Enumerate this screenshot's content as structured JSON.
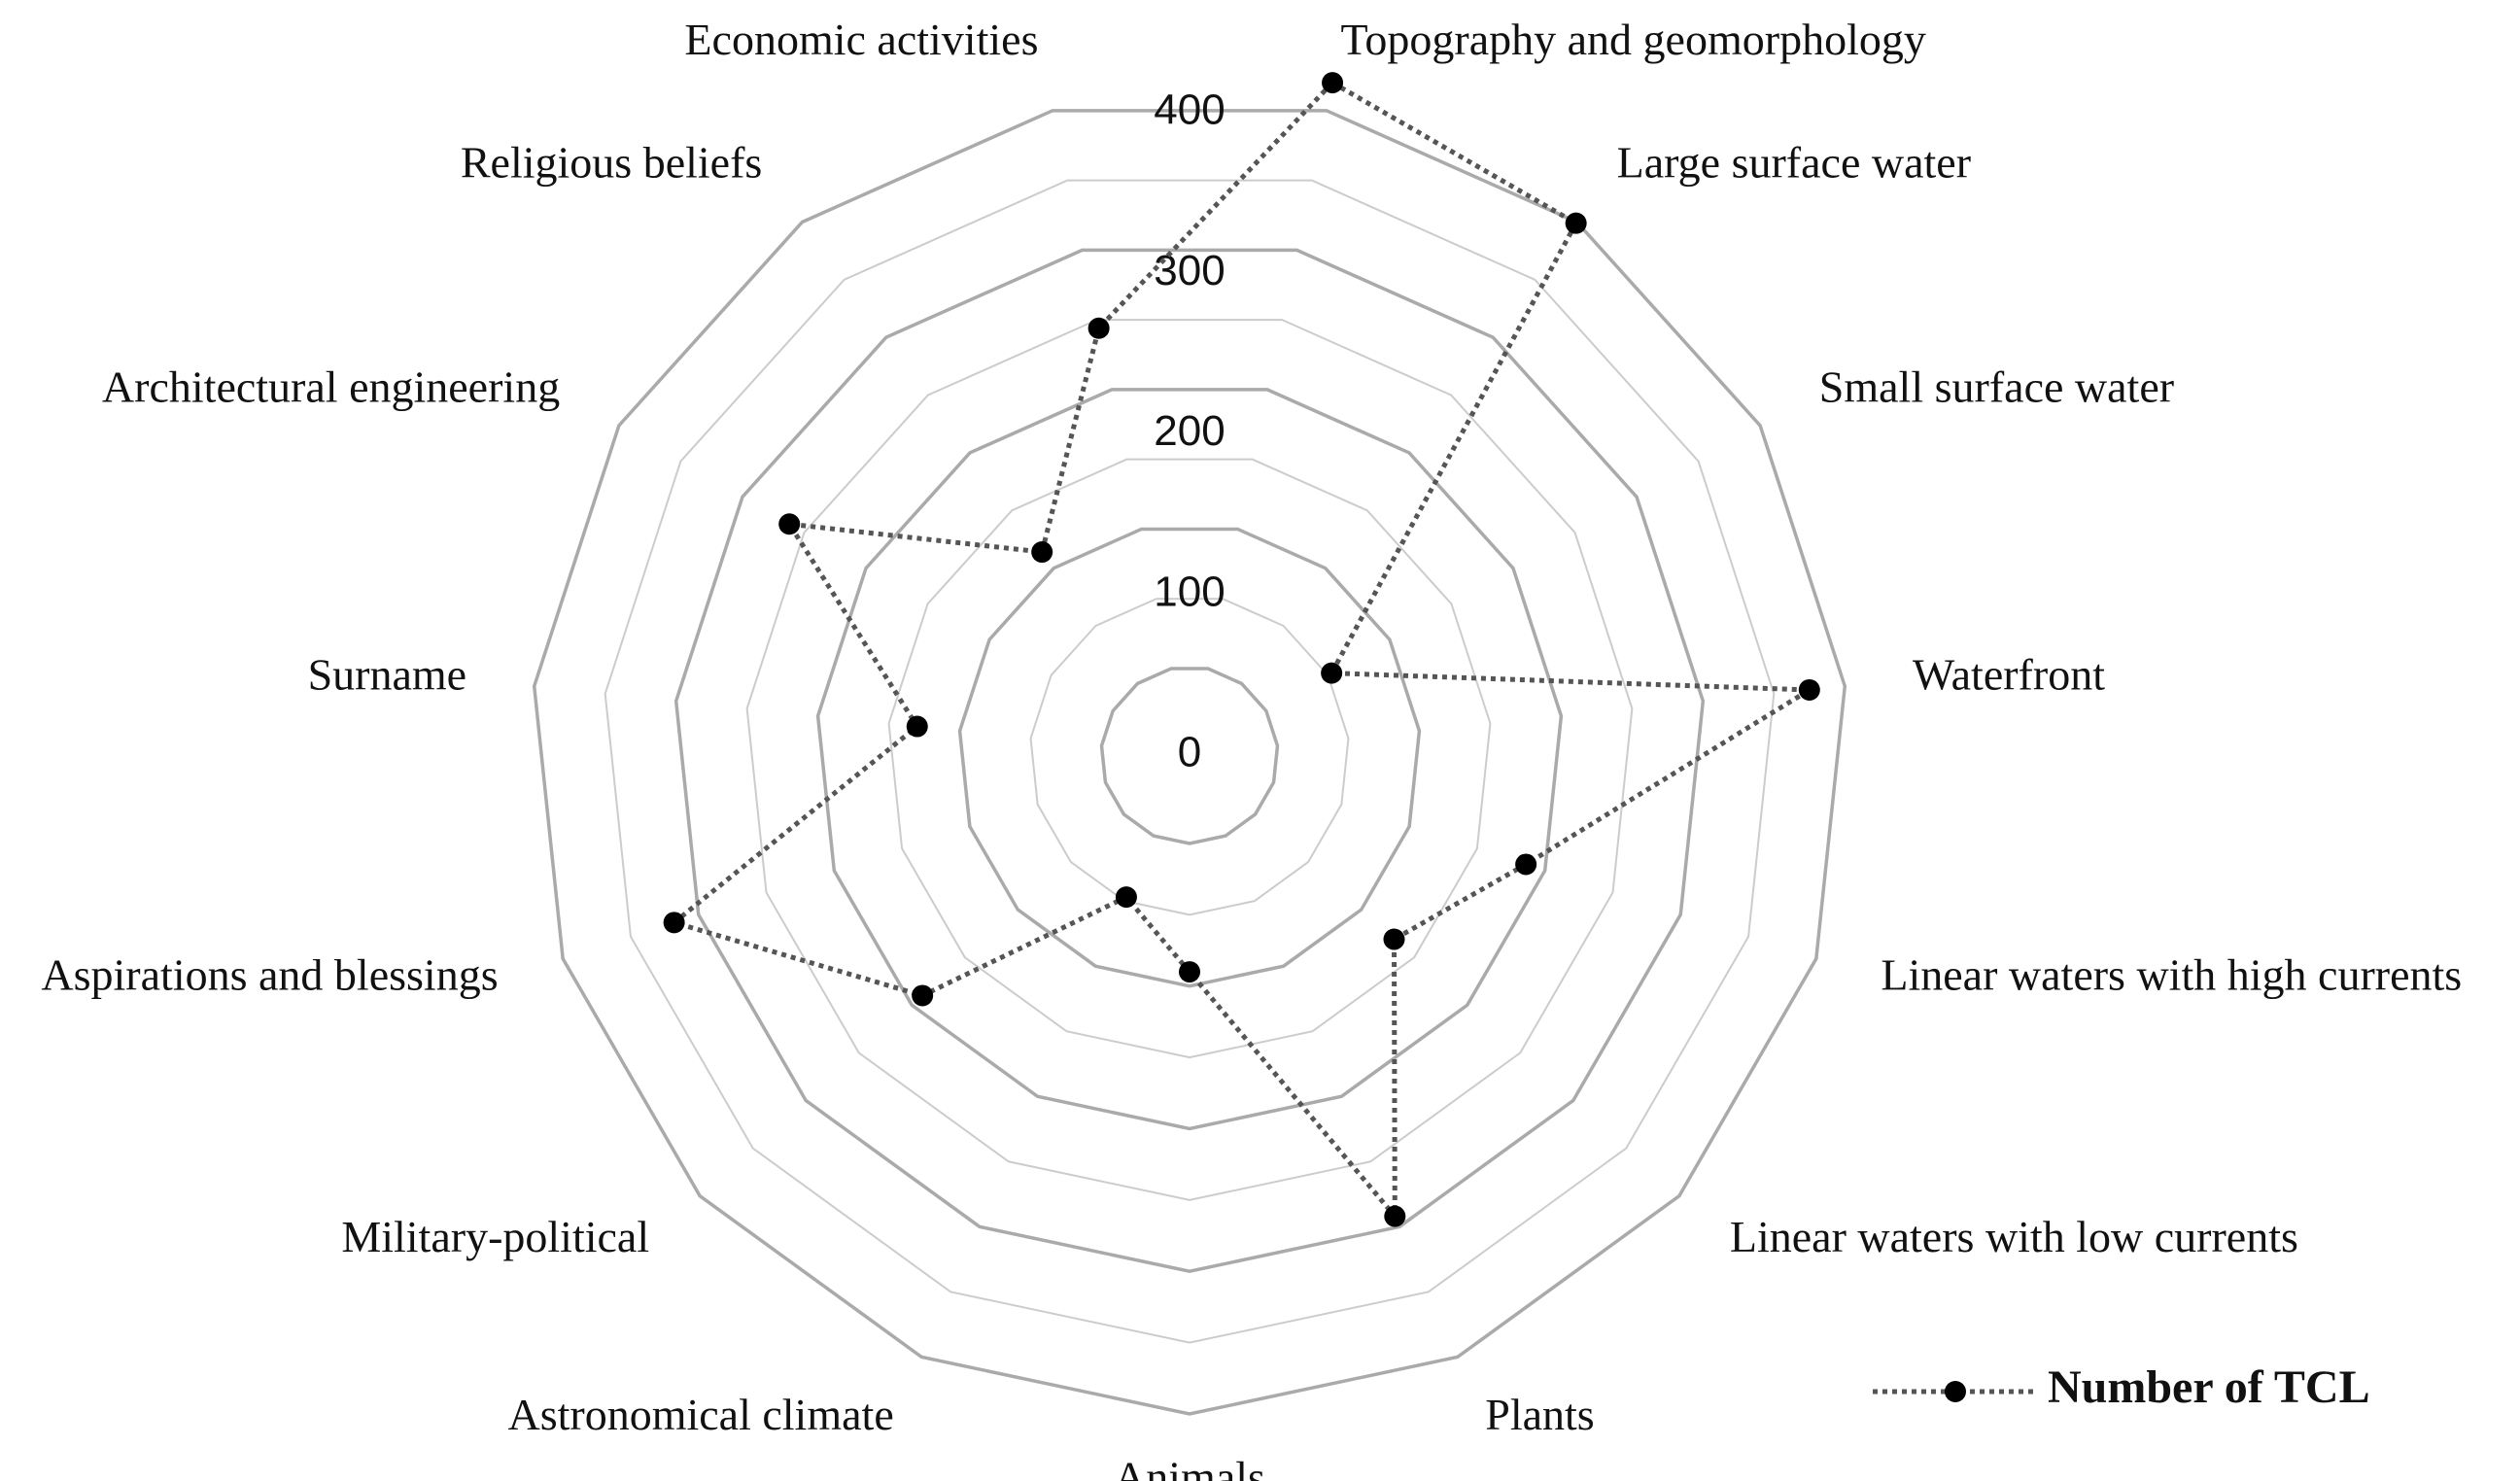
{
  "chart_data": {
    "type": "radar",
    "categories": [
      "Topography and geomorphology",
      "Large surface water",
      "Small surface water",
      "Waterfront",
      "Linear waters with high currents",
      "Linear waters with low currents",
      "Plants",
      "Animals",
      "Astronomical climate",
      "Military-political",
      "Aspirations and blessings",
      "Surname",
      "Architectural engineering",
      "Religious beliefs",
      "Economic activities"
    ],
    "series": [
      {
        "name": "Number of TCL",
        "color": "#555555",
        "values": [
          420,
          399,
          53,
          375,
          186,
          131,
          292,
          90,
          47,
          190,
          318,
          130,
          262,
          114,
          244
        ]
      }
    ],
    "ylim": [
      0,
      400
    ],
    "yticks": [
      0,
      100,
      200,
      300,
      400
    ],
    "grid": true,
    "legend": "bottom-right"
  }
}
